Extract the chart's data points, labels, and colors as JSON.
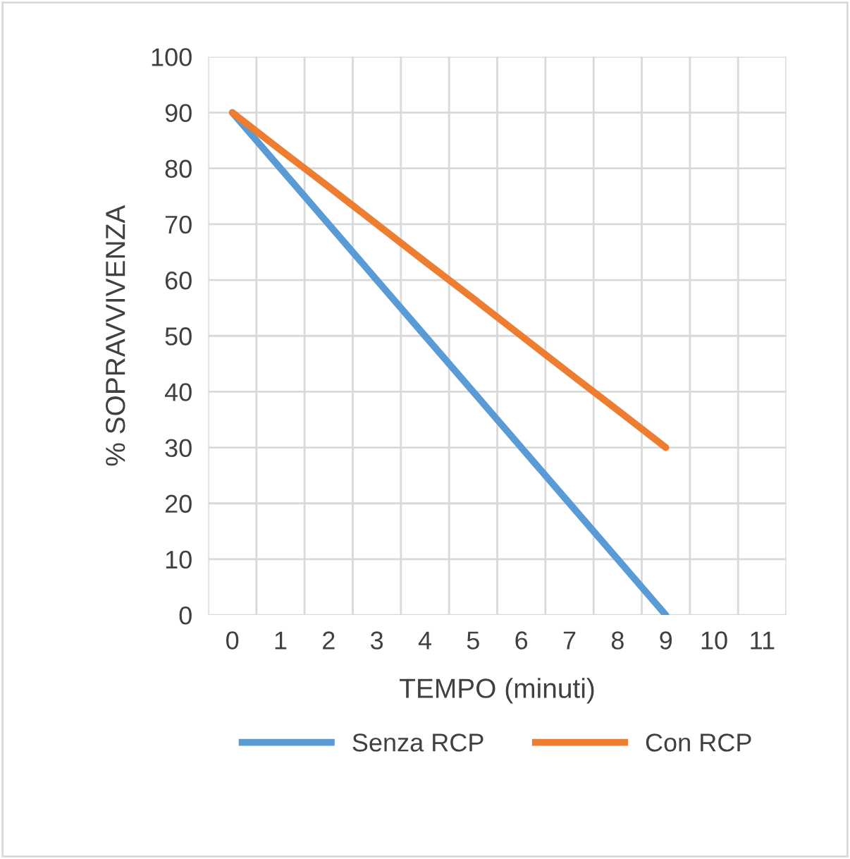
{
  "chart_data": {
    "type": "line",
    "xlabel": "TEMPO (minuti)",
    "ylabel": "% SOPRAVVIVENZA",
    "categories": [
      "0",
      "1",
      "2",
      "3",
      "4",
      "5",
      "6",
      "7",
      "8",
      "9",
      "10",
      "11"
    ],
    "series": [
      {
        "name": "Senza RCP",
        "color": "#5b9bd5",
        "values": [
          90,
          80,
          70,
          60,
          50,
          40,
          30,
          20,
          10,
          0,
          null,
          null
        ]
      },
      {
        "name": "Con RCP",
        "color": "#ed7d31",
        "values": [
          90,
          83.3,
          76.7,
          70,
          63.3,
          56.7,
          50,
          43.3,
          36.7,
          30,
          null,
          null
        ]
      }
    ],
    "ylim": [
      0,
      100
    ],
    "yticks": [
      0,
      10,
      20,
      30,
      40,
      50,
      60,
      70,
      80,
      90,
      100
    ],
    "grid": true,
    "legend": "bottom",
    "marker": "none",
    "line_style": "solid"
  }
}
